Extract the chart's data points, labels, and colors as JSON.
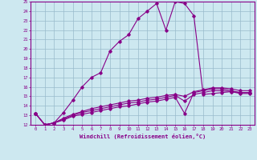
{
  "xlabel": "Windchill (Refroidissement éolien,°C)",
  "xlim": [
    -0.5,
    23.5
  ],
  "ylim": [
    12,
    25
  ],
  "bg_color": "#cde8f0",
  "line_color": "#880088",
  "grid_color": "#99bbcc",
  "line1_x": [
    0,
    1,
    2,
    3,
    4,
    5,
    6,
    7,
    8,
    9,
    10,
    11,
    12,
    13,
    14,
    15,
    16,
    17,
    18,
    19,
    20,
    21,
    22,
    23
  ],
  "line1_y": [
    13.2,
    12.0,
    12.2,
    13.3,
    14.6,
    16.0,
    17.0,
    17.5,
    19.8,
    20.8,
    21.5,
    23.2,
    24.0,
    24.8,
    22.0,
    25.0,
    24.8,
    23.5,
    15.2,
    15.3,
    15.4,
    15.5,
    15.4,
    15.4
  ],
  "line2_x": [
    0,
    1,
    2,
    3,
    4,
    5,
    6,
    7,
    8,
    9,
    10,
    11,
    12,
    13,
    14,
    15,
    16,
    17,
    18,
    19,
    20,
    21,
    22,
    23
  ],
  "line2_y": [
    13.2,
    12.0,
    12.2,
    12.5,
    12.9,
    13.1,
    13.3,
    13.5,
    13.7,
    13.9,
    14.0,
    14.2,
    14.4,
    14.5,
    14.7,
    14.9,
    13.2,
    15.4,
    15.6,
    15.8,
    15.8,
    15.6,
    15.4,
    15.4
  ],
  "line3_x": [
    0,
    1,
    2,
    3,
    4,
    5,
    6,
    7,
    8,
    9,
    10,
    11,
    12,
    13,
    14,
    15,
    16,
    17,
    18,
    19,
    20,
    21,
    22,
    23
  ],
  "line3_y": [
    13.2,
    12.0,
    12.2,
    12.6,
    13.0,
    13.3,
    13.5,
    13.7,
    13.9,
    14.1,
    14.3,
    14.4,
    14.6,
    14.7,
    14.9,
    15.1,
    14.5,
    15.2,
    15.4,
    15.6,
    15.6,
    15.5,
    15.3,
    15.3
  ],
  "line4_x": [
    0,
    1,
    2,
    3,
    4,
    5,
    6,
    7,
    8,
    9,
    10,
    11,
    12,
    13,
    14,
    15,
    16,
    17,
    18,
    19,
    20,
    21,
    22,
    23
  ],
  "line4_y": [
    13.2,
    12.0,
    12.2,
    12.7,
    13.1,
    13.4,
    13.7,
    13.9,
    14.1,
    14.3,
    14.5,
    14.6,
    14.8,
    14.9,
    15.1,
    15.2,
    15.0,
    15.5,
    15.7,
    15.9,
    15.9,
    15.8,
    15.6,
    15.6
  ]
}
